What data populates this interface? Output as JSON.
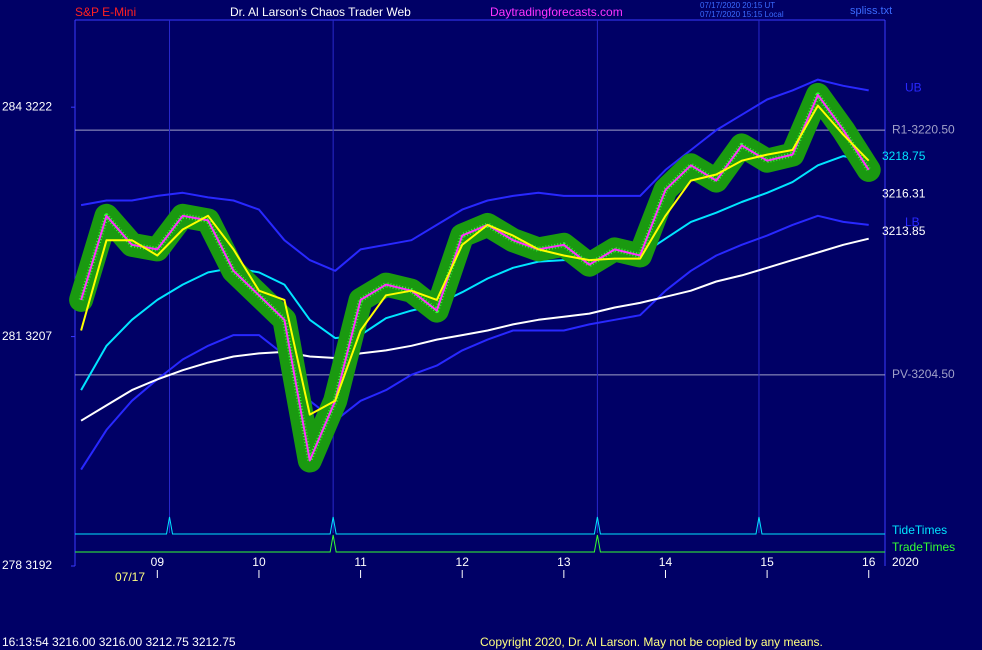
{
  "chart_data": {
    "type": "line",
    "symbol": "S&P E-Mini",
    "title": "Dr. Al Larson's Chaos Trader Web",
    "site": "Daytradingforecasts.com",
    "timestamps": [
      "07/17/2020 20:15 UT",
      "07/17/2020 15:15 Local"
    ],
    "file": "spliss.txt",
    "date_label": "07/17",
    "year_label": "2020",
    "quote_line": "16:13:54  3216.00 3216.00 3212.75 3212.75",
    "copyright": "Copyright 2020, Dr. Al Larson. May not be copied by any means.",
    "xlim": [
      8.19,
      16.16
    ],
    "xticks": [
      {
        "value": 9,
        "label": "09"
      },
      10,
      11,
      12,
      13,
      14,
      15,
      16
    ],
    "ylim": [
      3192,
      3227.7
    ],
    "yticks": [
      {
        "value": 3192,
        "label": "278  3192"
      },
      {
        "value": 3207,
        "label": "281  3207"
      },
      {
        "value": 3222,
        "label": "284  3222"
      }
    ],
    "x": [
      8.25,
      8.5,
      8.75,
      9,
      9.25,
      9.5,
      9.75,
      10,
      10.25,
      10.5,
      10.75,
      11,
      11.25,
      11.5,
      11.75,
      12,
      12.25,
      12.5,
      12.75,
      13,
      13.25,
      13.5,
      13.75,
      14,
      14.25,
      14.5,
      14.75,
      15,
      15.25,
      15.5,
      15.75,
      16
    ],
    "series": [
      {
        "name": "UB",
        "color": "#2828ff",
        "values": [
          3215.6,
          3215.9,
          3215.9,
          3216.2,
          3216.4,
          3216.1,
          3215.9,
          3215.3,
          3213.3,
          3212.0,
          3211.3,
          3212.7,
          3213.0,
          3213.3,
          3214.3,
          3215.3,
          3215.9,
          3216.2,
          3216.4,
          3216.2,
          3216.2,
          3216.2,
          3216.2,
          3217.9,
          3219.2,
          3220.5,
          3221.5,
          3222.5,
          3223.1,
          3223.8,
          3223.4,
          3223.1
        ]
      },
      {
        "name": "LB",
        "color": "#2828ff",
        "values": [
          3198.3,
          3200.9,
          3202.8,
          3204.2,
          3205.5,
          3206.4,
          3207.1,
          3207.1,
          3205.8,
          3202.8,
          3201.5,
          3202.8,
          3203.5,
          3204.5,
          3205.1,
          3206.1,
          3206.8,
          3207.4,
          3207.4,
          3207.4,
          3207.8,
          3208.1,
          3208.4,
          3210.0,
          3211.3,
          3212.3,
          3213.0,
          3213.6,
          3214.3,
          3214.9,
          3214.5,
          3214.3
        ]
      },
      {
        "color": "#ffffff",
        "values": [
          3201.5,
          3202.5,
          3203.5,
          3204.2,
          3204.8,
          3205.3,
          3205.7,
          3205.9,
          3206.0,
          3205.7,
          3205.6,
          3205.9,
          3206.1,
          3206.4,
          3206.8,
          3207.1,
          3207.4,
          3207.8,
          3208.1,
          3208.3,
          3208.5,
          3208.9,
          3209.2,
          3209.6,
          3210.0,
          3210.6,
          3211.0,
          3211.5,
          3212.0,
          3212.5,
          3213.0,
          3213.4
        ]
      },
      {
        "color": "#00e5ff",
        "values": [
          3203.5,
          3206.4,
          3208.1,
          3209.4,
          3210.4,
          3211.2,
          3211.5,
          3211.2,
          3210.4,
          3208.1,
          3206.9,
          3207.1,
          3208.2,
          3208.7,
          3209.1,
          3209.9,
          3210.8,
          3211.5,
          3211.9,
          3212.0,
          3212.0,
          3212.1,
          3212.3,
          3213.4,
          3214.5,
          3215.1,
          3215.8,
          3216.4,
          3217.1,
          3218.2,
          3218.8,
          3218.5
        ]
      },
      {
        "color": "#ff33ff",
        "halo": "#1a9a10",
        "values": [
          3209.4,
          3214.9,
          3213.0,
          3212.7,
          3214.9,
          3214.6,
          3211.3,
          3209.7,
          3208.1,
          3198.9,
          3202.8,
          3209.4,
          3210.4,
          3210.0,
          3208.7,
          3213.6,
          3214.3,
          3213.3,
          3212.7,
          3213.0,
          3211.7,
          3212.7,
          3212.3,
          3216.6,
          3218.2,
          3217.2,
          3219.5,
          3218.5,
          3218.9,
          3222.8,
          3220.5,
          3217.9
        ]
      },
      {
        "color": "#ffff00",
        "values": [
          3207.4,
          3213.3,
          3213.3,
          3212.3,
          3214.0,
          3214.9,
          3212.7,
          3210.0,
          3209.4,
          3201.9,
          3202.8,
          3207.4,
          3209.7,
          3210.0,
          3209.4,
          3213.0,
          3214.3,
          3213.6,
          3212.7,
          3212.3,
          3212.0,
          3212.1,
          3212.1,
          3214.9,
          3217.2,
          3217.6,
          3218.5,
          3218.9,
          3219.2,
          3222.1,
          3220.2,
          3218.5
        ]
      }
    ],
    "levels": [
      {
        "label": "R1-3220.50",
        "value": 3220.5
      },
      {
        "label": "PV-3204.50",
        "value": 3204.5
      }
    ],
    "right_labels": [
      {
        "label": "3218.75",
        "value": 3218.75,
        "color": "#00e5ff"
      },
      {
        "label": "3216.31",
        "value": 3216.31,
        "color": "#ffffff"
      },
      {
        "label": "3213.85",
        "value": 3213.85,
        "color": "#ffffff"
      }
    ],
    "tide_label": "TideTimes",
    "tide_times": [
      9.12,
      10.73,
      13.33,
      14.92
    ],
    "trade_label": "TradeTimes",
    "trade_times": [
      10.73,
      13.33
    ]
  }
}
